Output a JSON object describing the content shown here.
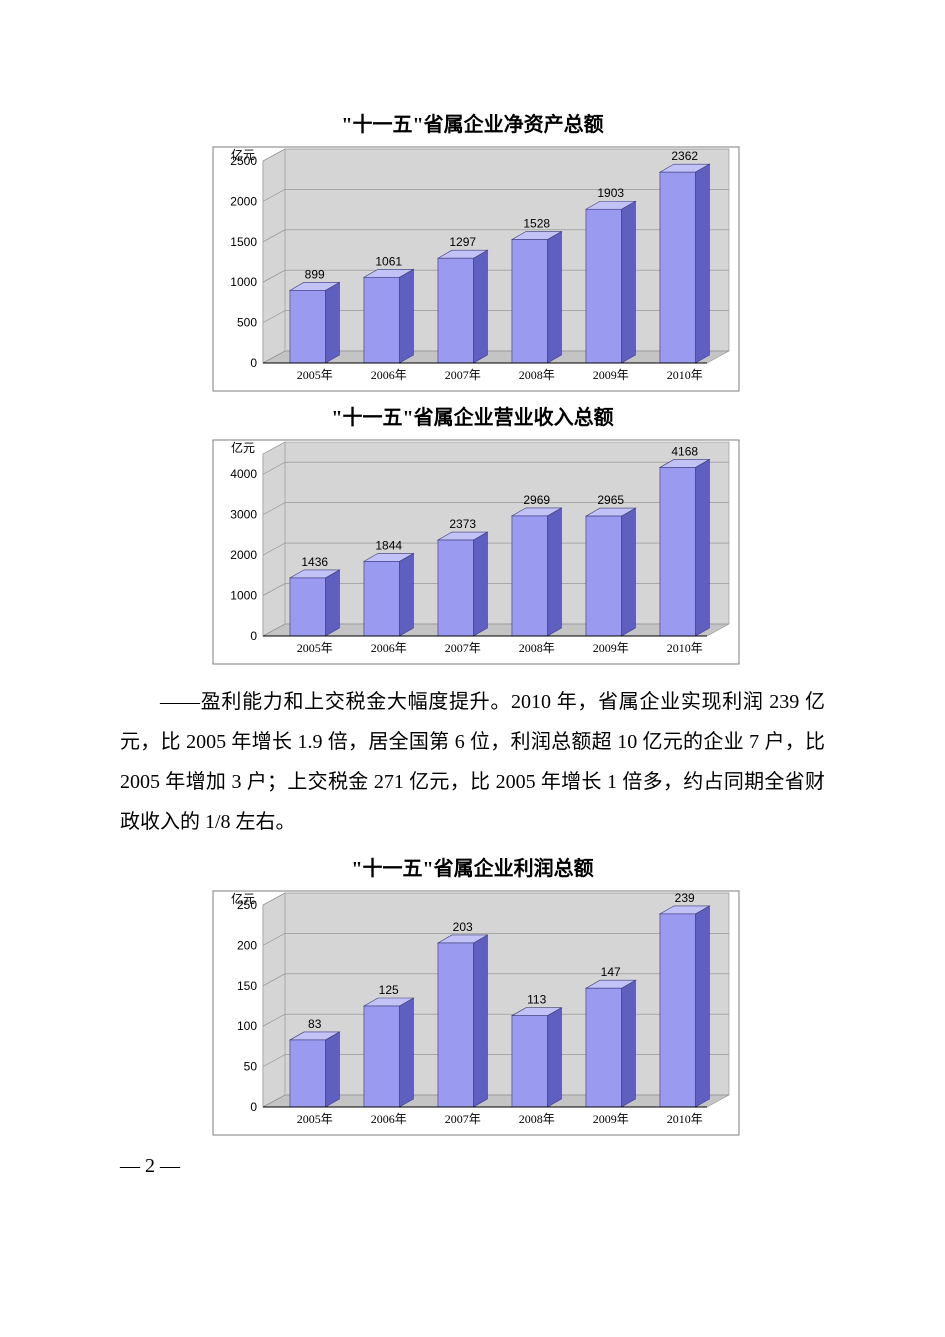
{
  "chart1": {
    "type": "bar3d",
    "title": "\"十一五\"省属企业净资产总额",
    "unit": "亿元",
    "categories": [
      "2005年",
      "2006年",
      "2007年",
      "2008年",
      "2009年",
      "2010年"
    ],
    "values": [
      899,
      1061,
      1297,
      1528,
      1903,
      2362
    ],
    "ymax": 2500,
    "ytick_step": 500,
    "bar_front_color": "#9a9af0",
    "bar_side_color": "#5f5fbf",
    "bar_top_color": "#c2c2f7",
    "floor_color": "#c4c4c4",
    "wall_color": "#d5d5d5",
    "grid_color": "#8e8e8e",
    "border_color": "#7d7d7d",
    "label_color": "#000000",
    "label_fontsize": 12,
    "title_fontsize": 20,
    "background_color": "#ffffff"
  },
  "chart2": {
    "type": "bar3d",
    "title": "\"十一五\"省属企业营业收入总额",
    "unit": "亿元",
    "categories": [
      "2005年",
      "2006年",
      "2007年",
      "2008年",
      "2009年",
      "2010年"
    ],
    "values": [
      1436,
      1844,
      2373,
      2969,
      2965,
      4168
    ],
    "ymax": 4500,
    "ytick_step": 1000,
    "bar_front_color": "#9a9af0",
    "bar_side_color": "#5f5fbf",
    "bar_top_color": "#c2c2f7",
    "floor_color": "#c4c4c4",
    "wall_color": "#d5d5d5",
    "grid_color": "#8e8e8e",
    "border_color": "#7d7d7d",
    "label_color": "#000000",
    "label_fontsize": 12,
    "title_fontsize": 20,
    "background_color": "#ffffff"
  },
  "paragraph": "——盈利能力和上交税金大幅度提升。2010 年，省属企业实现利润 239 亿元，比 2005 年增长 1.9 倍，居全国第 6 位，利润总额超 10 亿元的企业 7 户，比 2005 年增加 3 户；上交税金 271 亿元，比 2005 年增长 1 倍多，约占同期全省财政收入的 1/8 左右。",
  "chart3": {
    "type": "bar3d",
    "title": "\"十一五\"省属企业利润总额",
    "unit": "亿元",
    "categories": [
      "2005年",
      "2006年",
      "2007年",
      "2008年",
      "2009年",
      "2010年"
    ],
    "values": [
      83,
      125,
      203,
      113,
      147,
      239
    ],
    "ymax": 250,
    "ytick_step": 50,
    "bar_front_color": "#9a9af0",
    "bar_side_color": "#5f5fbf",
    "bar_top_color": "#c2c2f7",
    "floor_color": "#c4c4c4",
    "wall_color": "#d5d5d5",
    "grid_color": "#8e8e8e",
    "border_color": "#7d7d7d",
    "label_color": "#000000",
    "label_fontsize": 12,
    "title_fontsize": 20,
    "background_color": "#ffffff"
  },
  "page_number": "— 2 —"
}
